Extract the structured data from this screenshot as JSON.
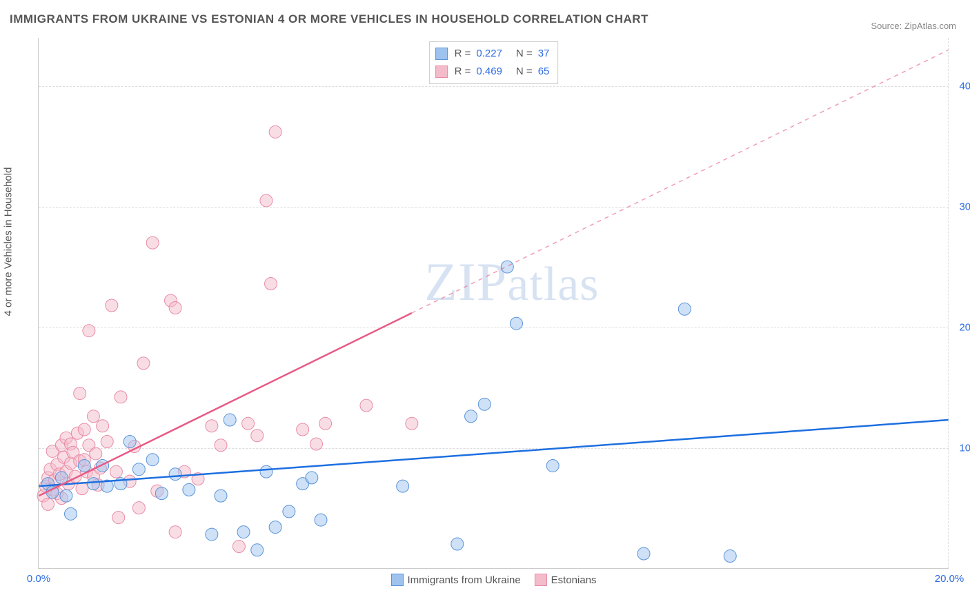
{
  "title": "IMMIGRANTS FROM UKRAINE VS ESTONIAN 4 OR MORE VEHICLES IN HOUSEHOLD CORRELATION CHART",
  "source": "Source: ZipAtlas.com",
  "ylabel": "4 or more Vehicles in Household",
  "watermark": {
    "text_a": "ZIP",
    "text_b": "atlas"
  },
  "chart": {
    "type": "scatter",
    "x_range": [
      0,
      20
    ],
    "y_range": [
      0,
      44
    ],
    "background_color": "#ffffff",
    "grid_color": "#dddddd",
    "axis_color": "#cccccc",
    "tick_color": "#2b6be4",
    "label_color": "#555555",
    "title_color": "#555555",
    "title_fontsize": 17,
    "label_fontsize": 15,
    "tick_fontsize": 15,
    "marker_radius": 9,
    "marker_opacity": 0.5,
    "y_ticks": [
      10,
      20,
      30,
      40
    ],
    "y_tick_labels": [
      "10.0%",
      "20.0%",
      "30.0%",
      "40.0%"
    ],
    "x_ticks": [
      0,
      20
    ],
    "x_tick_labels": [
      "0.0%",
      "20.0%"
    ]
  },
  "series": [
    {
      "key": "ukraine",
      "label": "Immigrants from Ukraine",
      "R": "0.227",
      "N": "37",
      "fill_color": "#9ec3ef",
      "stroke_color": "#5a93d8",
      "line_color": "#1d6fe0",
      "line_width": 2.5,
      "trend": {
        "x1": 0,
        "y1": 6.8,
        "x2": 20,
        "y2": 12.3,
        "solid_until_x": 20
      },
      "points": [
        [
          0.2,
          7.0
        ],
        [
          0.3,
          6.3
        ],
        [
          0.5,
          7.5
        ],
        [
          0.6,
          6.0
        ],
        [
          0.7,
          4.5
        ],
        [
          1.0,
          8.5
        ],
        [
          1.2,
          7.0
        ],
        [
          1.4,
          8.5
        ],
        [
          1.5,
          6.8
        ],
        [
          1.8,
          7.0
        ],
        [
          2.0,
          10.5
        ],
        [
          2.2,
          8.2
        ],
        [
          2.5,
          9.0
        ],
        [
          2.7,
          6.2
        ],
        [
          3.0,
          7.8
        ],
        [
          3.3,
          6.5
        ],
        [
          3.8,
          2.8
        ],
        [
          4.0,
          6.0
        ],
        [
          4.2,
          12.3
        ],
        [
          4.5,
          3.0
        ],
        [
          4.8,
          1.5
        ],
        [
          5.0,
          8.0
        ],
        [
          5.2,
          3.4
        ],
        [
          5.5,
          4.7
        ],
        [
          5.8,
          7.0
        ],
        [
          6.0,
          7.5
        ],
        [
          6.2,
          4.0
        ],
        [
          8.0,
          6.8
        ],
        [
          9.2,
          2.0
        ],
        [
          9.5,
          12.6
        ],
        [
          9.8,
          13.6
        ],
        [
          10.3,
          25.0
        ],
        [
          10.5,
          20.3
        ],
        [
          11.3,
          8.5
        ],
        [
          13.3,
          1.2
        ],
        [
          14.2,
          21.5
        ],
        [
          15.2,
          1.0
        ]
      ]
    },
    {
      "key": "estonian",
      "label": "Estonians",
      "R": "0.469",
      "N": "65",
      "fill_color": "#f4bccb",
      "stroke_color": "#e88ba5",
      "line_color": "#e85a85",
      "line_width": 2.5,
      "trend": {
        "x1": 0,
        "y1": 6.0,
        "x2": 20,
        "y2": 43.0,
        "solid_until_x": 8.2
      },
      "points": [
        [
          0.1,
          6.0
        ],
        [
          0.15,
          6.8
        ],
        [
          0.2,
          5.3
        ],
        [
          0.2,
          7.5
        ],
        [
          0.25,
          8.2
        ],
        [
          0.3,
          6.5
        ],
        [
          0.3,
          9.7
        ],
        [
          0.35,
          7.3
        ],
        [
          0.4,
          6.2
        ],
        [
          0.4,
          8.6
        ],
        [
          0.45,
          7.8
        ],
        [
          0.5,
          5.8
        ],
        [
          0.5,
          10.2
        ],
        [
          0.55,
          9.2
        ],
        [
          0.6,
          8.0
        ],
        [
          0.6,
          10.8
        ],
        [
          0.65,
          7.0
        ],
        [
          0.7,
          8.7
        ],
        [
          0.7,
          10.3
        ],
        [
          0.75,
          9.6
        ],
        [
          0.8,
          7.6
        ],
        [
          0.85,
          11.2
        ],
        [
          0.9,
          8.9
        ],
        [
          0.9,
          14.5
        ],
        [
          0.95,
          6.6
        ],
        [
          1.0,
          9.0
        ],
        [
          1.0,
          11.5
        ],
        [
          1.05,
          8.0
        ],
        [
          1.1,
          10.2
        ],
        [
          1.1,
          19.7
        ],
        [
          1.2,
          7.6
        ],
        [
          1.2,
          12.6
        ],
        [
          1.25,
          9.5
        ],
        [
          1.3,
          6.9
        ],
        [
          1.35,
          8.3
        ],
        [
          1.4,
          11.8
        ],
        [
          1.5,
          10.5
        ],
        [
          1.6,
          21.8
        ],
        [
          1.7,
          8.0
        ],
        [
          1.75,
          4.2
        ],
        [
          1.8,
          14.2
        ],
        [
          2.0,
          7.2
        ],
        [
          2.1,
          10.1
        ],
        [
          2.2,
          5.0
        ],
        [
          2.3,
          17.0
        ],
        [
          2.5,
          27.0
        ],
        [
          2.6,
          6.4
        ],
        [
          2.9,
          22.2
        ],
        [
          3.0,
          3.0
        ],
        [
          3.0,
          21.6
        ],
        [
          3.2,
          8.0
        ],
        [
          3.5,
          7.4
        ],
        [
          3.8,
          11.8
        ],
        [
          4.0,
          10.2
        ],
        [
          4.4,
          1.8
        ],
        [
          4.6,
          12.0
        ],
        [
          4.8,
          11.0
        ],
        [
          5.0,
          30.5
        ],
        [
          5.1,
          23.6
        ],
        [
          5.2,
          36.2
        ],
        [
          5.8,
          11.5
        ],
        [
          6.1,
          10.3
        ],
        [
          6.3,
          12.0
        ],
        [
          7.2,
          13.5
        ],
        [
          8.2,
          12.0
        ]
      ]
    }
  ],
  "legend": {
    "stat_labels": {
      "R": "R =",
      "N": "N ="
    }
  }
}
